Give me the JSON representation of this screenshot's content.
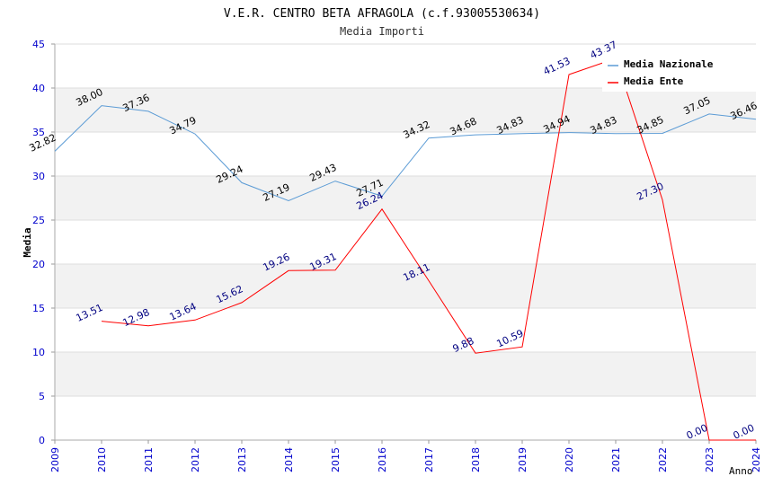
{
  "chart_data": {
    "type": "line",
    "title": "V.E.R. CENTRO BETA AFRAGOLA (c.f.93005530634)",
    "subtitle": "Media Importi",
    "xlabel": "Anno",
    "ylabel": "Media",
    "x": [
      "2009",
      "2010",
      "2011",
      "2012",
      "2013",
      "2014",
      "2015",
      "2016",
      "2017",
      "2018",
      "2019",
      "2020",
      "2021",
      "2022",
      "2023",
      "2024"
    ],
    "ylim": [
      0,
      45
    ],
    "yticks": [
      "0",
      "5",
      "10",
      "15",
      "20",
      "25",
      "30",
      "35",
      "40",
      "45"
    ],
    "series": [
      {
        "name": "Media Nazionale",
        "color": "#5b9bd5",
        "label_color": "#000000",
        "values": [
          32.82,
          38.0,
          37.36,
          34.79,
          29.24,
          27.19,
          29.43,
          27.71,
          34.32,
          34.68,
          34.83,
          34.94,
          34.83,
          34.85,
          37.05,
          36.46
        ],
        "labels": [
          "32.82",
          "38.00",
          "37.36",
          "34.79",
          "29.24",
          "27.19",
          "29.43",
          "27.71",
          "34.32",
          "34.68",
          "34.83",
          "34.94",
          "34.83",
          "34.85",
          "37.05",
          "36.46"
        ]
      },
      {
        "name": "Media Ente",
        "color": "#ff0000",
        "label_color": "#000080",
        "values": [
          null,
          13.51,
          12.98,
          13.64,
          15.62,
          19.26,
          19.31,
          26.24,
          18.11,
          9.88,
          10.59,
          41.53,
          43.37,
          27.3,
          0.0,
          0.0
        ],
        "labels": [
          "",
          "13.51",
          "12.98",
          "13.64",
          "15.62",
          "19.26",
          "19.31",
          "26.24",
          "18.11",
          "9.88",
          "10.59",
          "41.53",
          "43.37",
          "27.30",
          "0.00",
          "0.00"
        ]
      }
    ],
    "legend": "top-right",
    "grid": true,
    "colors": {
      "band": "#f2f2f2",
      "grid": "#dddddd",
      "tick_label": "#0000cc"
    }
  }
}
